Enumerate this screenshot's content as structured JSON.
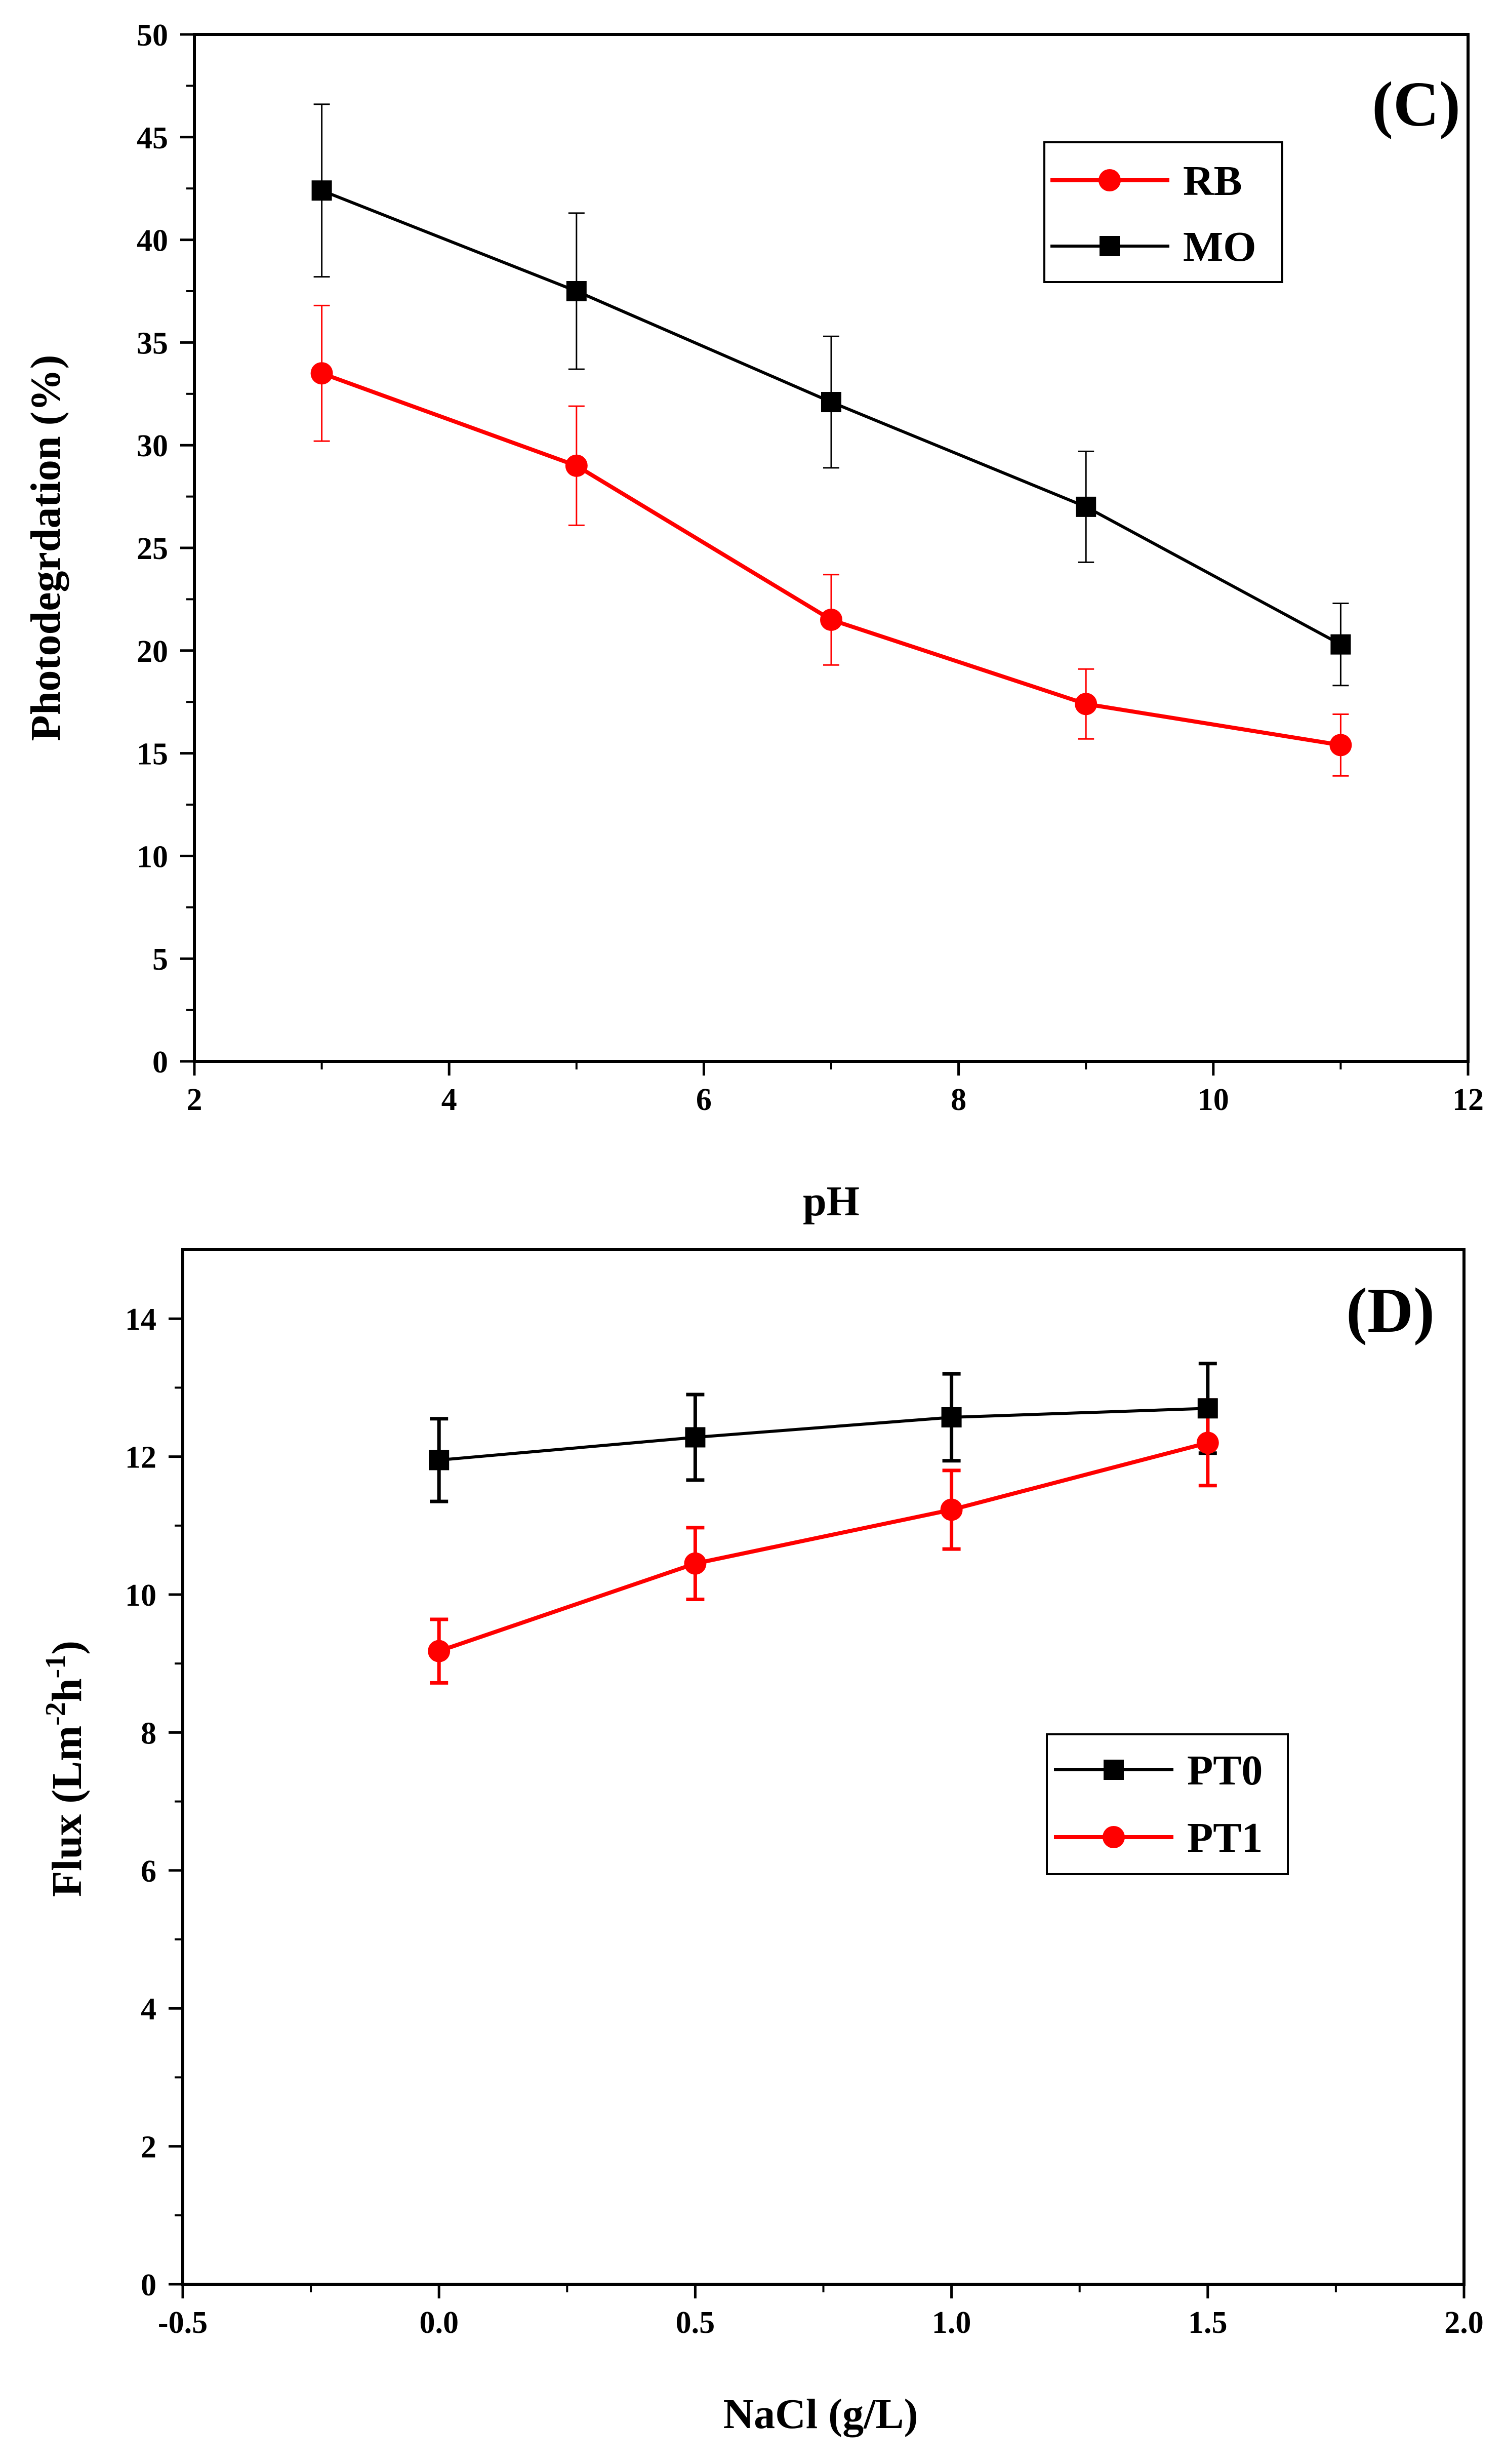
{
  "chart_data": [
    {
      "type": "line",
      "panel_label": "(C)",
      "xlabel": "pH",
      "ylabel": "Photodegrdation (%)",
      "xlim": [
        2,
        12
      ],
      "ylim": [
        0,
        50
      ],
      "xticks": [
        2,
        4,
        6,
        8,
        10,
        12
      ],
      "yticks": [
        0,
        5,
        10,
        15,
        20,
        25,
        30,
        35,
        40,
        45,
        50
      ],
      "legend_position": "top-right",
      "grid": false,
      "series": [
        {
          "name": "RB",
          "color": "#ff0000",
          "marker": "circle",
          "x": [
            3,
            5,
            7,
            9,
            11
          ],
          "values": [
            33.5,
            29.0,
            21.5,
            17.4,
            15.4
          ],
          "errors": [
            3.3,
            2.9,
            2.2,
            1.7,
            1.5
          ]
        },
        {
          "name": "MO",
          "color": "#000000",
          "marker": "square",
          "x": [
            3,
            5,
            7,
            9,
            11
          ],
          "values": [
            42.4,
            37.5,
            32.1,
            27.0,
            20.3
          ],
          "errors": [
            4.2,
            3.8,
            3.2,
            2.7,
            2.0
          ]
        }
      ]
    },
    {
      "type": "line",
      "panel_label": "(D)",
      "xlabel": "NaCl (g/L)",
      "ylabel_main": "Flux (Lm",
      "ylabel_sup1": "-2",
      "ylabel_mid": "h",
      "ylabel_sup2": "-1",
      "ylabel_end": ")",
      "xlim": [
        -0.5,
        2.0
      ],
      "ylim": [
        0,
        15
      ],
      "xticks": [
        -0.5,
        0.0,
        0.5,
        1.0,
        1.5,
        2.0
      ],
      "xtick_labels": [
        "-0.5",
        "0.0",
        "0.5",
        "1.0",
        "1.5",
        "2.0"
      ],
      "yticks": [
        0,
        2,
        4,
        6,
        8,
        10,
        12,
        14
      ],
      "legend_position": "center-right",
      "grid": false,
      "series": [
        {
          "name": "PT0",
          "color": "#000000",
          "marker": "square",
          "x": [
            0.0,
            0.5,
            1.0,
            1.5
          ],
          "values": [
            11.95,
            12.28,
            12.57,
            12.7
          ],
          "errors": [
            0.6,
            0.62,
            0.63,
            0.65
          ]
        },
        {
          "name": "PT1",
          "color": "#ff0000",
          "marker": "circle",
          "x": [
            0.0,
            0.5,
            1.0,
            1.5
          ],
          "values": [
            9.18,
            10.45,
            11.23,
            12.2
          ],
          "errors": [
            0.46,
            0.52,
            0.57,
            0.62
          ]
        }
      ]
    }
  ]
}
